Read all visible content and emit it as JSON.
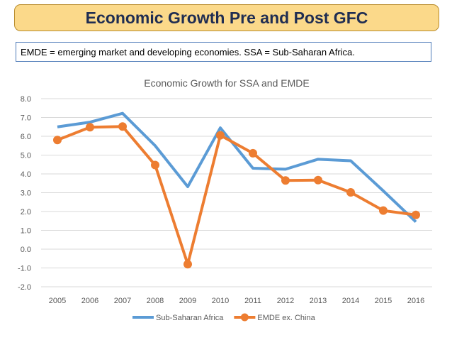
{
  "slide": {
    "title": "Economic Growth Pre and Post GFC",
    "note": "EMDE = emerging market and developing economies. SSA = Sub-Saharan Africa."
  },
  "chart_data": {
    "type": "line",
    "title": "Economic Growth for SSA and EMDE",
    "xlabel": "",
    "ylabel": "",
    "categories": [
      "2005",
      "2006",
      "2007",
      "2008",
      "2009",
      "2010",
      "2011",
      "2012",
      "2013",
      "2014",
      "2015",
      "2016"
    ],
    "ylim": [
      -2.0,
      8.0
    ],
    "yticks": [
      "-2.0",
      "-1.0",
      "0.0",
      "1.0",
      "2.0",
      "3.0",
      "4.0",
      "5.0",
      "6.0",
      "7.0",
      "8.0"
    ],
    "grid": true,
    "legend_position": "bottom",
    "series": [
      {
        "name": "Sub-Saharan Africa",
        "color": "#5b9bd5",
        "marker": false,
        "values": [
          6.5,
          6.75,
          7.22,
          5.5,
          3.32,
          6.45,
          4.3,
          4.25,
          4.78,
          4.7,
          3.1,
          1.45
        ]
      },
      {
        "name": "EMDE ex. China",
        "color": "#ed7d31",
        "marker": true,
        "values": [
          5.8,
          6.48,
          6.52,
          4.47,
          -0.8,
          6.05,
          5.1,
          3.65,
          3.67,
          3.02,
          2.05,
          1.82
        ]
      }
    ]
  }
}
